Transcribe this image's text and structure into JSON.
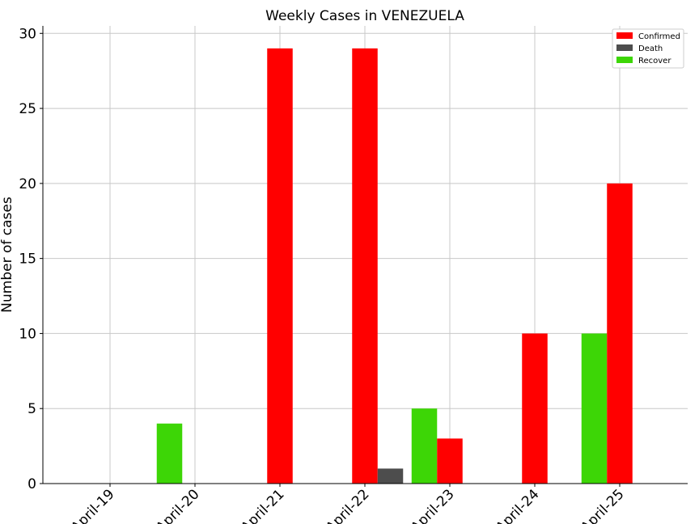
{
  "chart_data": {
    "type": "bar",
    "title": "Weekly Cases in VENEZUELA",
    "xlabel": "",
    "ylabel": "Number of cases",
    "ylim": [
      0,
      30.5
    ],
    "yticks": [
      0,
      5,
      10,
      15,
      20,
      25,
      30
    ],
    "categories": [
      "April-19",
      "April-20",
      "April-21",
      "April-22",
      "April-23",
      "April-24",
      "April-25"
    ],
    "grid": true,
    "legend_position": "top-right",
    "bars": [
      {
        "series": "Recover",
        "category": "April-20",
        "offset": -0.3,
        "value": 4
      },
      {
        "series": "Confirmed",
        "category": "April-21",
        "offset": 0,
        "value": 29
      },
      {
        "series": "Confirmed",
        "category": "April-22",
        "offset": 0,
        "value": 29
      },
      {
        "series": "Death",
        "category": "April-22",
        "offset": 0.3,
        "value": 1
      },
      {
        "series": "Recover",
        "category": "April-23",
        "offset": -0.3,
        "value": 5
      },
      {
        "series": "Confirmed",
        "category": "April-23",
        "offset": 0,
        "value": 3
      },
      {
        "series": "Confirmed",
        "category": "April-24",
        "offset": 0,
        "value": 10
      },
      {
        "series": "Recover",
        "category": "April-25",
        "offset": -0.3,
        "value": 10
      },
      {
        "series": "Confirmed",
        "category": "April-25",
        "offset": 0,
        "value": 20
      }
    ],
    "series": [
      {
        "name": "Confirmed",
        "color": "#ff0000"
      },
      {
        "name": "Death",
        "color": "#4d4d4d"
      },
      {
        "name": "Recover",
        "color": "#3dd606"
      }
    ]
  }
}
